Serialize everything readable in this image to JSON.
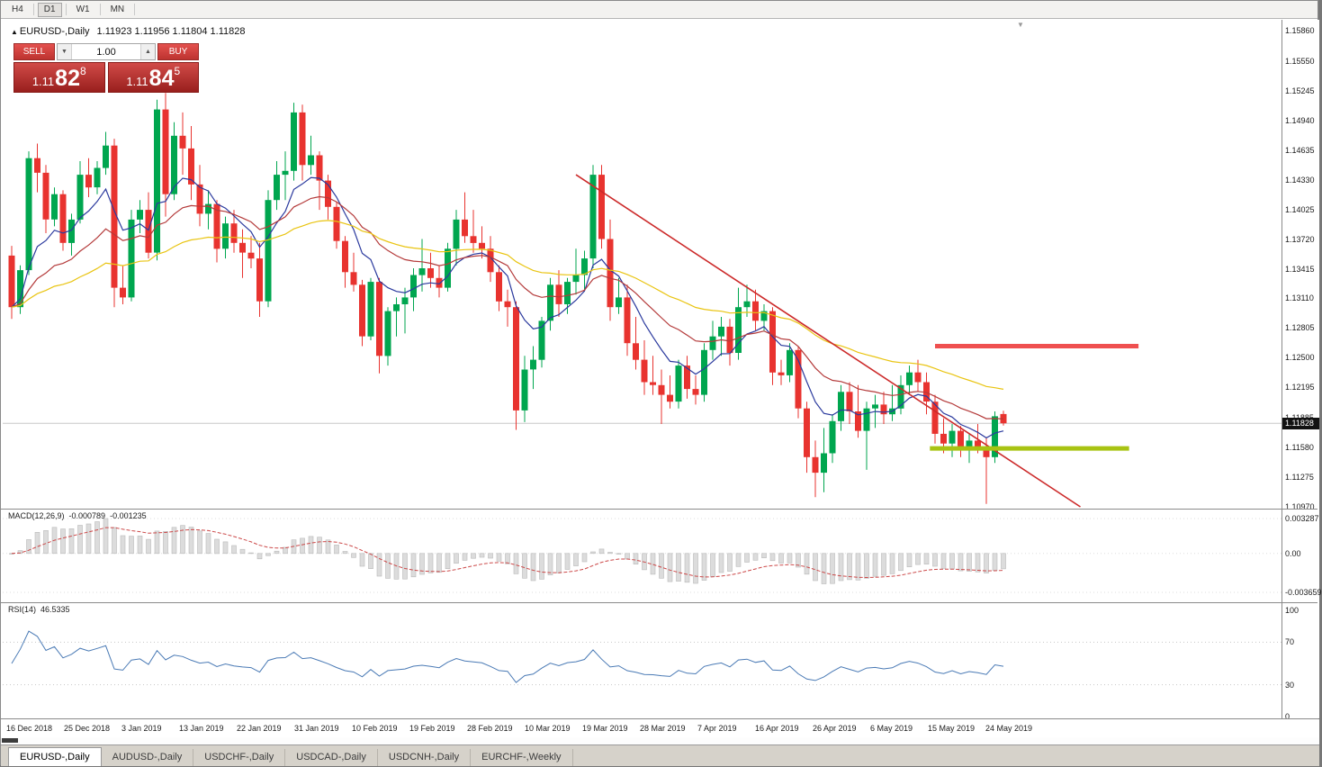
{
  "icons": {
    "direction_up": "▲",
    "volume_down": "▼",
    "volume_up": "▲",
    "shift_marker": "▼"
  },
  "toolbar": {
    "timeframes": [
      "H4",
      "D1",
      "W1",
      "MN"
    ],
    "active": "D1"
  },
  "chart_header": {
    "symbol": "EURUSD-,Daily",
    "ohlc": "1.11923 1.11956 1.11804 1.11828"
  },
  "trade_panel": {
    "sell_label": "SELL",
    "buy_label": "BUY",
    "volume": "1.00",
    "sell_price": {
      "prefix": "1.11",
      "big": "82",
      "sup": "8"
    },
    "buy_price": {
      "prefix": "1.11",
      "big": "84",
      "sup": "5"
    }
  },
  "price_axis": {
    "ticks": [
      "1.15860",
      "1.15550",
      "1.15245",
      "1.14940",
      "1.14635",
      "1.14330",
      "1.14025",
      "1.13720",
      "1.13415",
      "1.13110",
      "1.12805",
      "1.12500",
      "1.12195",
      "1.11885",
      "1.11580",
      "1.11275",
      "1.10970"
    ],
    "current_price": "1.11828"
  },
  "macd_panel": {
    "label": "MACD(12,26,9)",
    "value_main": "-0.000789",
    "value_signal": "-0.001235",
    "axis": [
      "0.003287",
      "0.00",
      "-0.003659"
    ]
  },
  "rsi_panel": {
    "label": "RSI(14)",
    "value": "46.5335",
    "axis": [
      "100",
      "70",
      "30",
      "0"
    ]
  },
  "time_axis": {
    "labels": [
      "16 Dec 2018",
      "25 Dec 2018",
      "3 Jan 2019",
      "13 Jan 2019",
      "22 Jan 2019",
      "31 Jan 2019",
      "10 Feb 2019",
      "19 Feb 2019",
      "28 Feb 2019",
      "10 Mar 2019",
      "19 Mar 2019",
      "28 Mar 2019",
      "7 Apr 2019",
      "16 Apr 2019",
      "26 Apr 2019",
      "6 May 2019",
      "15 May 2019",
      "24 May 2019"
    ]
  },
  "tabs": {
    "items": [
      "EURUSD-,Daily",
      "AUDUSD-,Daily",
      "USDCHF-,Daily",
      "USDCAD-,Daily",
      "USDCNH-,Daily",
      "EURCHF-,Weekly"
    ],
    "active_index": 0
  },
  "chart_data": {
    "type": "candlestick",
    "title": "EURUSD-,Daily",
    "price_range": {
      "max": 1.1586,
      "min": 1.1097
    },
    "colors": {
      "up": "#00a64f",
      "down": "#e8332f"
    },
    "candles": [
      [
        1.1355,
        1.1365,
        1.129,
        1.1302
      ],
      [
        1.1302,
        1.1345,
        1.1295,
        1.134
      ],
      [
        1.134,
        1.1462,
        1.1335,
        1.1455
      ],
      [
        1.1455,
        1.147,
        1.142,
        1.144
      ],
      [
        1.144,
        1.1448,
        1.1378,
        1.1392
      ],
      [
        1.1392,
        1.1425,
        1.1385,
        1.1418
      ],
      [
        1.1418,
        1.1422,
        1.136,
        1.1368
      ],
      [
        1.1368,
        1.1398,
        1.1355,
        1.1392
      ],
      [
        1.1392,
        1.1452,
        1.1388,
        1.1438
      ],
      [
        1.1438,
        1.1455,
        1.1415,
        1.1425
      ],
      [
        1.1425,
        1.1452,
        1.1418,
        1.1445
      ],
      [
        1.1445,
        1.1482,
        1.1438,
        1.1468
      ],
      [
        1.1468,
        1.1475,
        1.1302,
        1.1322
      ],
      [
        1.1322,
        1.1345,
        1.1305,
        1.1312
      ],
      [
        1.1312,
        1.1402,
        1.1308,
        1.1392
      ],
      [
        1.1392,
        1.1412,
        1.1378,
        1.1402
      ],
      [
        1.1402,
        1.142,
        1.1352,
        1.1358
      ],
      [
        1.1358,
        1.1515,
        1.135,
        1.1505
      ],
      [
        1.1505,
        1.1522,
        1.1395,
        1.1418
      ],
      [
        1.1418,
        1.1492,
        1.1412,
        1.1478
      ],
      [
        1.1478,
        1.1502,
        1.1438,
        1.1465
      ],
      [
        1.1465,
        1.1488,
        1.1412,
        1.1428
      ],
      [
        1.1428,
        1.1448,
        1.1385,
        1.1398
      ],
      [
        1.1398,
        1.1422,
        1.1382,
        1.1408
      ],
      [
        1.1408,
        1.1412,
        1.1348,
        1.1362
      ],
      [
        1.1362,
        1.1395,
        1.1352,
        1.1388
      ],
      [
        1.1388,
        1.1402,
        1.1358,
        1.1368
      ],
      [
        1.1368,
        1.1382,
        1.1332,
        1.1358
      ],
      [
        1.1358,
        1.1375,
        1.1342,
        1.1352
      ],
      [
        1.1352,
        1.1368,
        1.1292,
        1.1308
      ],
      [
        1.1308,
        1.1422,
        1.1302,
        1.1412
      ],
      [
        1.1412,
        1.1452,
        1.1402,
        1.1438
      ],
      [
        1.1438,
        1.1462,
        1.1412,
        1.1442
      ],
      [
        1.1442,
        1.1512,
        1.1432,
        1.1502
      ],
      [
        1.1502,
        1.151,
        1.1432,
        1.1448
      ],
      [
        1.1448,
        1.1478,
        1.1438,
        1.1458
      ],
      [
        1.1458,
        1.1462,
        1.1402,
        1.1432
      ],
      [
        1.1432,
        1.1438,
        1.1392,
        1.1405
      ],
      [
        1.1405,
        1.141,
        1.1362,
        1.137
      ],
      [
        1.137,
        1.1375,
        1.1322,
        1.1338
      ],
      [
        1.1338,
        1.1358,
        1.1318,
        1.1325
      ],
      [
        1.1325,
        1.133,
        1.1262,
        1.1272
      ],
      [
        1.1272,
        1.1332,
        1.1268,
        1.1328
      ],
      [
        1.1328,
        1.1332,
        1.1234,
        1.1252
      ],
      [
        1.1252,
        1.1302,
        1.1242,
        1.1298
      ],
      [
        1.1298,
        1.1312,
        1.1272,
        1.1305
      ],
      [
        1.1305,
        1.1322,
        1.1275,
        1.1312
      ],
      [
        1.1312,
        1.1342,
        1.1298,
        1.1335
      ],
      [
        1.1335,
        1.1372,
        1.1318,
        1.1342
      ],
      [
        1.1342,
        1.1358,
        1.1322,
        1.1332
      ],
      [
        1.1332,
        1.1345,
        1.1312,
        1.1322
      ],
      [
        1.1322,
        1.1368,
        1.1318,
        1.1362
      ],
      [
        1.1362,
        1.1402,
        1.1345,
        1.1392
      ],
      [
        1.1392,
        1.142,
        1.1368,
        1.1375
      ],
      [
        1.1375,
        1.1402,
        1.1358,
        1.1368
      ],
      [
        1.1368,
        1.1385,
        1.1352,
        1.1362
      ],
      [
        1.1362,
        1.1375,
        1.1328,
        1.1338
      ],
      [
        1.1338,
        1.1345,
        1.1298,
        1.1308
      ],
      [
        1.1308,
        1.132,
        1.1282,
        1.1302
      ],
      [
        1.1302,
        1.1308,
        1.1176,
        1.1196
      ],
      [
        1.1196,
        1.1252,
        1.1184,
        1.1238
      ],
      [
        1.1238,
        1.1262,
        1.1218,
        1.1248
      ],
      [
        1.1248,
        1.1292,
        1.124,
        1.1288
      ],
      [
        1.1288,
        1.1332,
        1.1278,
        1.1325
      ],
      [
        1.1325,
        1.134,
        1.1292,
        1.1305
      ],
      [
        1.1305,
        1.1332,
        1.1295,
        1.1328
      ],
      [
        1.1328,
        1.1362,
        1.1315,
        1.1335
      ],
      [
        1.1335,
        1.136,
        1.1318,
        1.1352
      ],
      [
        1.1352,
        1.1448,
        1.1342,
        1.1438
      ],
      [
        1.1438,
        1.1448,
        1.1362,
        1.1372
      ],
      [
        1.1372,
        1.1392,
        1.1288,
        1.1302
      ],
      [
        1.1302,
        1.1332,
        1.1295,
        1.1312
      ],
      [
        1.1312,
        1.1325,
        1.1252,
        1.1265
      ],
      [
        1.1265,
        1.1292,
        1.1238,
        1.1248
      ],
      [
        1.1248,
        1.1268,
        1.1212,
        1.1225
      ],
      [
        1.1225,
        1.1252,
        1.1212,
        1.1222
      ],
      [
        1.1222,
        1.1238,
        1.1182,
        1.1212
      ],
      [
        1.1212,
        1.1232,
        1.1198,
        1.1205
      ],
      [
        1.1205,
        1.1248,
        1.1198,
        1.1242
      ],
      [
        1.1242,
        1.1252,
        1.1208,
        1.1218
      ],
      [
        1.1218,
        1.1232,
        1.1202,
        1.1212
      ],
      [
        1.1212,
        1.1265,
        1.1205,
        1.1258
      ],
      [
        1.1258,
        1.1288,
        1.1248,
        1.1272
      ],
      [
        1.1272,
        1.1292,
        1.1252,
        1.1282
      ],
      [
        1.1282,
        1.129,
        1.1242,
        1.1255
      ],
      [
        1.1255,
        1.1322,
        1.1248,
        1.1302
      ],
      [
        1.1302,
        1.1325,
        1.1292,
        1.1308
      ],
      [
        1.1308,
        1.132,
        1.1278,
        1.1288
      ],
      [
        1.1288,
        1.1305,
        1.1278,
        1.1298
      ],
      [
        1.1298,
        1.1302,
        1.1222,
        1.1235
      ],
      [
        1.1235,
        1.1248,
        1.1222,
        1.1232
      ],
      [
        1.1232,
        1.1265,
        1.1225,
        1.1258
      ],
      [
        1.1258,
        1.1262,
        1.1188,
        1.1198
      ],
      [
        1.1198,
        1.1205,
        1.1132,
        1.1148
      ],
      [
        1.1148,
        1.1165,
        1.1107,
        1.1132
      ],
      [
        1.1132,
        1.1178,
        1.1112,
        1.1152
      ],
      [
        1.1152,
        1.1192,
        1.1142,
        1.1185
      ],
      [
        1.1185,
        1.1222,
        1.1175,
        1.1215
      ],
      [
        1.1215,
        1.1225,
        1.1182,
        1.1195
      ],
      [
        1.1195,
        1.1222,
        1.1168,
        1.1175
      ],
      [
        1.1175,
        1.1205,
        1.1135,
        1.1198
      ],
      [
        1.1198,
        1.1212,
        1.1178,
        1.1202
      ],
      [
        1.1202,
        1.1215,
        1.1182,
        1.1192
      ],
      [
        1.1192,
        1.1222,
        1.1185,
        1.1198
      ],
      [
        1.1198,
        1.1232,
        1.1192,
        1.1222
      ],
      [
        1.1222,
        1.1242,
        1.1212,
        1.1235
      ],
      [
        1.1235,
        1.1248,
        1.1215,
        1.1225
      ],
      [
        1.1225,
        1.1235,
        1.1192,
        1.1205
      ],
      [
        1.1205,
        1.1212,
        1.1162,
        1.1172
      ],
      [
        1.1172,
        1.1188,
        1.1152,
        1.1162
      ],
      [
        1.1162,
        1.1182,
        1.1148,
        1.1175
      ],
      [
        1.1175,
        1.118,
        1.1148,
        1.1155
      ],
      [
        1.1155,
        1.1172,
        1.1142,
        1.1165
      ],
      [
        1.1165,
        1.1182,
        1.1152,
        1.1158
      ],
      [
        1.1158,
        1.1168,
        1.11,
        1.1148
      ],
      [
        1.1148,
        1.1195,
        1.1142,
        1.119
      ],
      [
        1.11923,
        1.11956,
        1.11804,
        1.11828
      ]
    ],
    "moving_averages": [
      {
        "period": 8,
        "color": "#2b3a9e",
        "name": "fast-ma"
      },
      {
        "period": 20,
        "color": "#b43a3a",
        "name": "medium-ma"
      },
      {
        "period": 45,
        "color": "#e9c411",
        "name": "slow-ma"
      }
    ],
    "annotations": {
      "trendline": {
        "i1": 66,
        "p1": 1.1438,
        "i2": 125,
        "p2": 1.1097,
        "color": "#cc2a2a"
      },
      "resistance": {
        "price": 1.1262,
        "i1": 108.0,
        "i2": 131.8,
        "color": "#ef5050",
        "width": 5
      },
      "support": {
        "price": 1.1157,
        "i1": 107.4,
        "i2": 130.7,
        "color": "#a8c313",
        "width": 5
      }
    },
    "macd": {
      "fast": 12,
      "slow": 26,
      "signal": 9,
      "range": {
        "max": 0.003287,
        "min": -0.003659
      },
      "histogram_fill": "#dcdcdc",
      "histogram_stroke": "#b9b9b9",
      "signal_color": "#cc4a4a"
    },
    "rsi": {
      "period": 14,
      "levels": [
        70,
        30
      ],
      "color": "#4a7ab5"
    }
  }
}
